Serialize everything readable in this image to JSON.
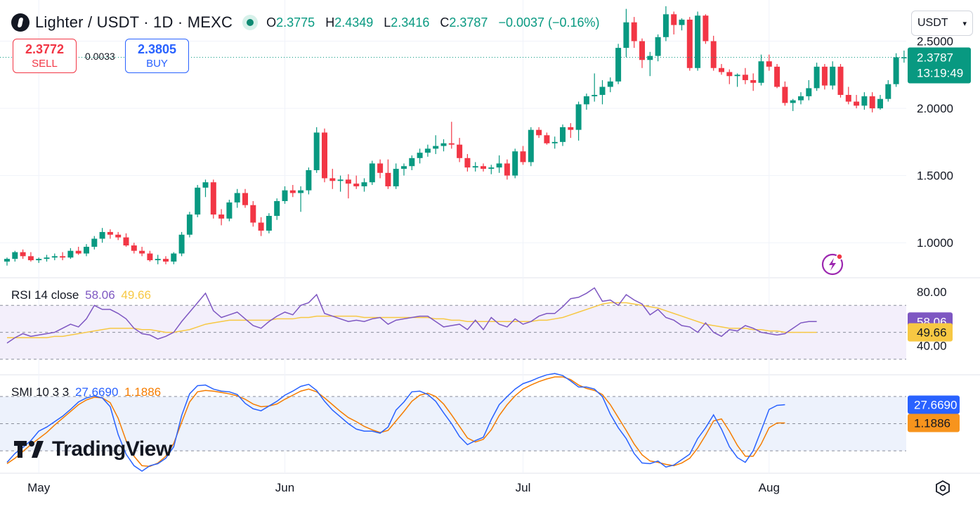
{
  "header": {
    "symbol": "Lighter / USDT · 1D · MEXC",
    "ohlc": [
      {
        "k": "O",
        "v": "2.3775"
      },
      {
        "k": "H",
        "v": "2.4349"
      },
      {
        "k": "L",
        "v": "2.3416"
      },
      {
        "k": "C",
        "v": "2.3787"
      }
    ],
    "change": "−0.0037 (−0.16%)",
    "up_color": "#089981",
    "down_color": "#f23645"
  },
  "trade": {
    "sell_price": "2.3772",
    "sell_label": "SELL",
    "spread": "0.0033",
    "buy_price": "2.3805",
    "buy_label": "BUY"
  },
  "currency_select": "USDT",
  "price_axis": {
    "ticks": [
      "2.5000",
      "2.0000",
      "1.5000",
      "1.0000"
    ],
    "tick_values": [
      2.5,
      2.0,
      1.5,
      1.0
    ]
  },
  "last_price": {
    "value": "2.3787",
    "countdown": "13:19:49",
    "color": "#089981"
  },
  "rsi": {
    "label": "RSI 14 close",
    "value": "58.06",
    "ma_value": "49.66",
    "ticks": [
      "80.00",
      "40.00"
    ],
    "tick_values": [
      80,
      40
    ],
    "color": "#7e57c2",
    "ma_color": "#f7c843"
  },
  "smi": {
    "label": "SMI 10 3 3",
    "value": "27.6690",
    "signal": "1.1886",
    "color": "#2962ff",
    "signal_color": "#f57c00"
  },
  "x_axis": {
    "labels": [
      "May",
      "Jun",
      "Jul",
      "Aug"
    ]
  },
  "branding": "TradingView",
  "chart_data": [
    {
      "type": "candlestick",
      "title": "Lighter / USDT · 1D · MEXC",
      "x_start": "2025-04-27",
      "interval": "1D",
      "ylim": [
        0.75,
        2.78
      ],
      "ohlc": [
        [
          0.86,
          0.89,
          0.83,
          0.88
        ],
        [
          0.88,
          0.94,
          0.86,
          0.93
        ],
        [
          0.93,
          0.95,
          0.88,
          0.9
        ],
        [
          0.9,
          0.93,
          0.86,
          0.87
        ],
        [
          0.87,
          0.89,
          0.85,
          0.88
        ],
        [
          0.88,
          0.91,
          0.86,
          0.89
        ],
        [
          0.89,
          0.92,
          0.87,
          0.9
        ],
        [
          0.9,
          0.93,
          0.87,
          0.89
        ],
        [
          0.89,
          0.96,
          0.88,
          0.94
        ],
        [
          0.94,
          0.97,
          0.91,
          0.92
        ],
        [
          0.92,
          0.99,
          0.9,
          0.97
        ],
        [
          0.97,
          1.05,
          0.95,
          1.03
        ],
        [
          1.03,
          1.11,
          1.0,
          1.08
        ],
        [
          1.08,
          1.1,
          1.03,
          1.06
        ],
        [
          1.06,
          1.08,
          1.02,
          1.04
        ],
        [
          1.04,
          1.07,
          0.97,
          0.98
        ],
        [
          0.98,
          1.0,
          0.92,
          0.94
        ],
        [
          0.94,
          0.97,
          0.9,
          0.92
        ],
        [
          0.92,
          0.94,
          0.86,
          0.87
        ],
        [
          0.87,
          0.91,
          0.84,
          0.88
        ],
        [
          0.88,
          0.9,
          0.84,
          0.86
        ],
        [
          0.86,
          0.93,
          0.84,
          0.92
        ],
        [
          0.92,
          1.08,
          0.9,
          1.06
        ],
        [
          1.06,
          1.23,
          1.04,
          1.21
        ],
        [
          1.21,
          1.43,
          1.19,
          1.41
        ],
        [
          1.41,
          1.47,
          1.34,
          1.45
        ],
        [
          1.45,
          1.47,
          1.18,
          1.21
        ],
        [
          1.21,
          1.25,
          1.13,
          1.18
        ],
        [
          1.18,
          1.32,
          1.16,
          1.3
        ],
        [
          1.3,
          1.4,
          1.26,
          1.37
        ],
        [
          1.37,
          1.4,
          1.26,
          1.28
        ],
        [
          1.28,
          1.31,
          1.12,
          1.15
        ],
        [
          1.15,
          1.19,
          1.05,
          1.09
        ],
        [
          1.09,
          1.22,
          1.07,
          1.2
        ],
        [
          1.2,
          1.33,
          1.17,
          1.31
        ],
        [
          1.31,
          1.42,
          1.29,
          1.39
        ],
        [
          1.39,
          1.43,
          1.34,
          1.37
        ],
        [
          1.37,
          1.42,
          1.23,
          1.39
        ],
        [
          1.39,
          1.56,
          1.36,
          1.54
        ],
        [
          1.54,
          1.86,
          1.52,
          1.82
        ],
        [
          1.82,
          1.85,
          1.45,
          1.48
        ],
        [
          1.48,
          1.55,
          1.4,
          1.46
        ],
        [
          1.46,
          1.5,
          1.38,
          1.47
        ],
        [
          1.47,
          1.51,
          1.33,
          1.44
        ],
        [
          1.44,
          1.5,
          1.4,
          1.42
        ],
        [
          1.42,
          1.48,
          1.38,
          1.45
        ],
        [
          1.45,
          1.61,
          1.43,
          1.59
        ],
        [
          1.59,
          1.62,
          1.48,
          1.52
        ],
        [
          1.52,
          1.62,
          1.4,
          1.42
        ],
        [
          1.42,
          1.59,
          1.4,
          1.55
        ],
        [
          1.55,
          1.59,
          1.5,
          1.57
        ],
        [
          1.57,
          1.65,
          1.54,
          1.63
        ],
        [
          1.63,
          1.7,
          1.59,
          1.67
        ],
        [
          1.67,
          1.73,
          1.64,
          1.7
        ],
        [
          1.7,
          1.8,
          1.66,
          1.72
        ],
        [
          1.72,
          1.77,
          1.68,
          1.74
        ],
        [
          1.74,
          1.9,
          1.7,
          1.73
        ],
        [
          1.73,
          1.78,
          1.6,
          1.63
        ],
        [
          1.63,
          1.66,
          1.53,
          1.56
        ],
        [
          1.56,
          1.6,
          1.53,
          1.57
        ],
        [
          1.57,
          1.59,
          1.53,
          1.55
        ],
        [
          1.55,
          1.58,
          1.51,
          1.56
        ],
        [
          1.56,
          1.65,
          1.52,
          1.59
        ],
        [
          1.59,
          1.62,
          1.47,
          1.5
        ],
        [
          1.5,
          1.7,
          1.48,
          1.68
        ],
        [
          1.68,
          1.72,
          1.58,
          1.6
        ],
        [
          1.6,
          1.86,
          1.57,
          1.84
        ],
        [
          1.84,
          1.86,
          1.78,
          1.8
        ],
        [
          1.8,
          1.82,
          1.73,
          1.74
        ],
        [
          1.74,
          1.79,
          1.7,
          1.75
        ],
        [
          1.75,
          1.88,
          1.72,
          1.86
        ],
        [
          1.86,
          1.89,
          1.78,
          1.84
        ],
        [
          1.84,
          2.05,
          1.76,
          2.03
        ],
        [
          2.03,
          2.11,
          1.99,
          2.09
        ],
        [
          2.09,
          2.26,
          2.05,
          2.1
        ],
        [
          2.1,
          2.21,
          2.03,
          2.16
        ],
        [
          2.16,
          2.23,
          2.12,
          2.2
        ],
        [
          2.2,
          2.48,
          2.18,
          2.45
        ],
        [
          2.45,
          2.74,
          2.38,
          2.64
        ],
        [
          2.64,
          2.68,
          2.45,
          2.5
        ],
        [
          2.5,
          2.52,
          2.3,
          2.36
        ],
        [
          2.36,
          2.42,
          2.24,
          2.39
        ],
        [
          2.39,
          2.55,
          2.35,
          2.53
        ],
        [
          2.53,
          2.76,
          2.5,
          2.7
        ],
        [
          2.7,
          2.72,
          2.55,
          2.62
        ],
        [
          2.62,
          2.67,
          2.58,
          2.66
        ],
        [
          2.66,
          2.68,
          2.28,
          2.3
        ],
        [
          2.3,
          2.72,
          2.28,
          2.69
        ],
        [
          2.69,
          2.7,
          2.48,
          2.5
        ],
        [
          2.5,
          2.54,
          2.28,
          2.3
        ],
        [
          2.3,
          2.33,
          2.25,
          2.27
        ],
        [
          2.27,
          2.29,
          2.18,
          2.24
        ],
        [
          2.24,
          2.26,
          2.16,
          2.25
        ],
        [
          2.25,
          2.3,
          2.18,
          2.21
        ],
        [
          2.21,
          2.26,
          2.13,
          2.19
        ],
        [
          2.19,
          2.4,
          2.17,
          2.35
        ],
        [
          2.35,
          2.4,
          2.28,
          2.31
        ],
        [
          2.31,
          2.33,
          2.15,
          2.16
        ],
        [
          2.16,
          2.2,
          2.02,
          2.04
        ],
        [
          2.04,
          2.07,
          1.98,
          2.06
        ],
        [
          2.06,
          2.12,
          2.03,
          2.09
        ],
        [
          2.09,
          2.21,
          2.06,
          2.15
        ],
        [
          2.15,
          2.34,
          2.13,
          2.31
        ],
        [
          2.31,
          2.33,
          2.14,
          2.17
        ],
        [
          2.17,
          2.35,
          2.14,
          2.31
        ],
        [
          2.31,
          2.33,
          2.08,
          2.1
        ],
        [
          2.1,
          2.16,
          2.03,
          2.05
        ],
        [
          2.05,
          2.1,
          2.0,
          2.02
        ],
        [
          2.02,
          2.12,
          1.99,
          2.09
        ],
        [
          2.09,
          2.12,
          1.97,
          2.0
        ],
        [
          2.0,
          2.1,
          1.99,
          2.07
        ],
        [
          2.07,
          2.21,
          2.05,
          2.18
        ],
        [
          2.18,
          2.41,
          2.16,
          2.38
        ],
        [
          2.38,
          2.43,
          2.34,
          2.38
        ]
      ]
    },
    {
      "type": "line",
      "title": "RSI 14 close",
      "ylim": [
        20,
        90
      ],
      "guides": [
        70,
        50,
        30
      ],
      "series": [
        {
          "name": "RSI",
          "values": [
            42,
            46,
            49,
            47,
            48,
            49,
            50,
            53,
            56,
            54,
            60,
            70,
            67,
            67,
            64,
            60,
            53,
            49,
            48,
            45,
            47,
            50,
            58,
            65,
            72,
            79,
            66,
            61,
            63,
            65,
            60,
            55,
            53,
            58,
            62,
            65,
            63,
            70,
            72,
            78,
            64,
            62,
            60,
            58,
            59,
            58,
            60,
            61,
            56,
            59,
            60,
            61,
            62,
            62,
            58,
            54,
            55,
            56,
            52,
            59,
            52,
            61,
            56,
            54,
            60,
            56,
            58,
            62,
            64,
            64,
            69,
            75,
            76,
            79,
            83,
            73,
            74,
            70,
            78,
            74,
            71,
            63,
            67,
            61,
            59,
            55,
            54,
            50,
            57,
            50,
            47,
            52,
            51,
            55,
            53,
            50,
            49,
            48,
            49,
            53,
            57,
            58,
            58
          ]
        },
        {
          "name": "MA",
          "values": [
            46,
            46,
            46,
            46,
            46,
            46,
            47,
            47,
            48,
            49,
            50,
            51,
            52,
            53,
            53,
            53,
            53,
            52,
            52,
            51,
            50,
            50,
            51,
            52,
            54,
            56,
            57,
            58,
            59,
            59,
            59,
            59,
            59,
            59,
            60,
            60,
            60,
            61,
            61,
            62,
            62,
            62,
            62,
            62,
            62,
            61,
            61,
            61,
            61,
            61,
            61,
            61,
            61,
            61,
            60,
            60,
            59,
            59,
            58,
            58,
            58,
            58,
            58,
            58,
            58,
            58,
            58,
            59,
            59,
            60,
            61,
            63,
            65,
            67,
            69,
            71,
            72,
            72,
            72,
            71,
            70,
            69,
            68,
            66,
            64,
            62,
            60,
            58,
            56,
            55,
            54,
            53,
            53,
            53,
            52,
            52,
            51,
            51,
            50,
            50,
            50,
            50,
            50
          ]
        }
      ]
    },
    {
      "type": "line",
      "title": "SMI 10 3 3",
      "ylim": [
        -70,
        70
      ],
      "guides": [
        40,
        0,
        -40
      ],
      "series": [
        {
          "name": "SMI",
          "values": [
            -57,
            -44,
            -35,
            -25,
            -11,
            -5,
            3,
            11,
            21,
            32,
            38,
            41,
            38,
            25,
            -16,
            -45,
            -62,
            -70,
            -62,
            -59,
            -51,
            -34,
            12,
            44,
            56,
            57,
            51,
            48,
            47,
            43,
            30,
            22,
            19,
            26,
            33,
            42,
            48,
            55,
            58,
            49,
            33,
            20,
            10,
            0,
            -8,
            -11,
            -11,
            -14,
            -5,
            20,
            32,
            47,
            48,
            43,
            33,
            16,
            0,
            -19,
            -31,
            -25,
            -20,
            6,
            28,
            40,
            51,
            59,
            63,
            68,
            72,
            74,
            71,
            63,
            54,
            54,
            51,
            40,
            14,
            -6,
            -22,
            -44,
            -58,
            -59,
            -55,
            -64,
            -61,
            -53,
            -45,
            -22,
            -6,
            13,
            -8,
            -34,
            -50,
            -57,
            -40,
            -10,
            21,
            27,
            28
          ]
        },
        {
          "name": "Signal",
          "values": [
            -59,
            -51,
            -41,
            -31,
            -22,
            -13,
            -2,
            8,
            18,
            28,
            35,
            39,
            38,
            31,
            8,
            -25,
            -48,
            -62,
            -63,
            -58,
            -48,
            -29,
            2,
            32,
            47,
            49,
            48,
            46,
            44,
            41,
            36,
            29,
            25,
            26,
            29,
            36,
            42,
            48,
            51,
            47,
            38,
            28,
            18,
            9,
            3,
            -4,
            -9,
            -13,
            -10,
            4,
            18,
            33,
            42,
            45,
            40,
            29,
            13,
            -4,
            -21,
            -27,
            -23,
            -9,
            12,
            28,
            41,
            51,
            57,
            62,
            66,
            69,
            69,
            65,
            57,
            52,
            49,
            43,
            28,
            9,
            -10,
            -30,
            -46,
            -55,
            -57,
            -60,
            -62,
            -58,
            -51,
            -36,
            -17,
            4,
            7,
            -11,
            -32,
            -48,
            -48,
            -30,
            -6,
            1,
            1
          ]
        }
      ]
    }
  ]
}
